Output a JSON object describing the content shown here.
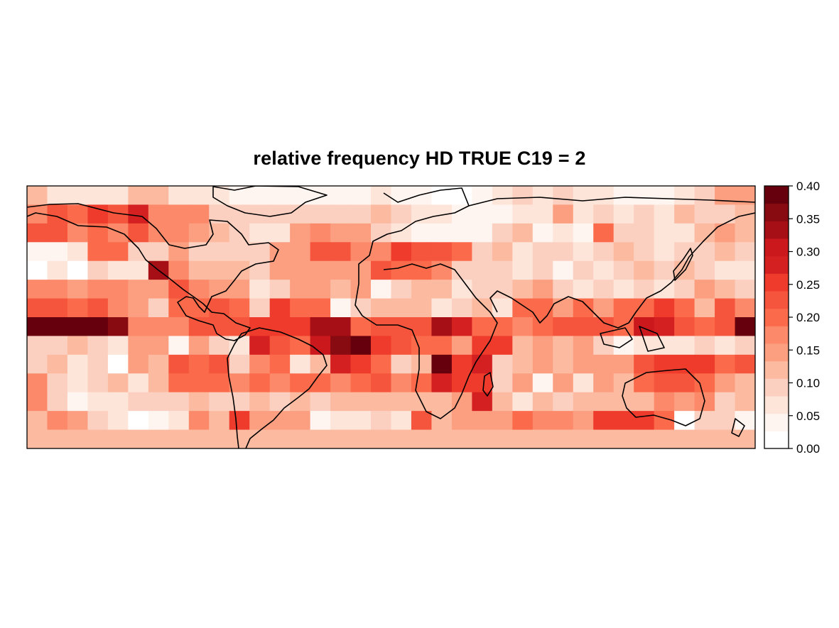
{
  "title": "relative frequency HD TRUE C19 = 2",
  "colorbar": {
    "ticks": [
      "0.00",
      "0.05",
      "0.10",
      "0.15",
      "0.20",
      "0.25",
      "0.30",
      "0.35",
      "0.40"
    ],
    "range": [
      0,
      0.4
    ],
    "colors": [
      "#FFFFFF",
      "#FFF5F0",
      "#FEE5D9",
      "#FCD0C0",
      "#FCBBA1",
      "#FC9E80",
      "#FC8A6A",
      "#FB6A4A",
      "#F5553C",
      "#EF3B2C",
      "#D42020",
      "#CB181D",
      "#A50F15",
      "#870B10",
      "#67000D"
    ]
  },
  "chart_data": {
    "type": "heatmap",
    "title": "relative frequency HD TRUE C19 = 2",
    "grid": "14 latitude bands x 36 longitude cells, 10 deg x 10 deg, from 180W to 180E and 60N to 70S",
    "value_range": [
      0,
      0.4
    ],
    "rows": [
      [
        0.12,
        0.08,
        0.08,
        0.08,
        0.08,
        0.11,
        0.12,
        0.08,
        0.08,
        0.06,
        0.05,
        0.05,
        0.05,
        0.03,
        0.03,
        0.03,
        0.03,
        0.06,
        0.05,
        0.03,
        0.0,
        0.0,
        0.05,
        0.08,
        0.1,
        0.08,
        0.1,
        0.08,
        0.06,
        0.05,
        0.05,
        0.05,
        0.06,
        0.1,
        0.16,
        0.16
      ],
      [
        0.18,
        0.22,
        0.2,
        0.25,
        0.23,
        0.27,
        0.18,
        0.18,
        0.18,
        0.1,
        0.1,
        0.1,
        0.1,
        0.1,
        0.1,
        0.1,
        0.1,
        0.12,
        0.1,
        0.08,
        0.08,
        0.05,
        0.05,
        0.05,
        0.08,
        0.06,
        0.16,
        0.06,
        0.1,
        0.08,
        0.1,
        0.06,
        0.12,
        0.1,
        0.1,
        0.12
      ],
      [
        0.22,
        0.22,
        0.18,
        0.2,
        0.18,
        0.22,
        0.18,
        0.18,
        0.15,
        0.12,
        0.1,
        0.08,
        0.08,
        0.16,
        0.18,
        0.15,
        0.15,
        0.1,
        0.06,
        0.05,
        0.05,
        0.05,
        0.05,
        0.1,
        0.12,
        0.05,
        0.06,
        0.05,
        0.2,
        0.1,
        0.1,
        0.08,
        0.06,
        0.12,
        0.15,
        0.12
      ],
      [
        0.05,
        0.05,
        0.06,
        0.2,
        0.2,
        0.1,
        0.1,
        0.15,
        0.1,
        0.1,
        0.1,
        0.1,
        0.16,
        0.16,
        0.22,
        0.22,
        0.18,
        0.18,
        0.25,
        0.22,
        0.22,
        0.2,
        0.1,
        0.12,
        0.08,
        0.1,
        0.1,
        0.06,
        0.1,
        0.12,
        0.1,
        0.08,
        0.1,
        0.1,
        0.12,
        0.1
      ],
      [
        0.0,
        0.06,
        0.0,
        0.1,
        0.08,
        0.08,
        0.33,
        0.18,
        0.12,
        0.12,
        0.12,
        0.1,
        0.15,
        0.16,
        0.15,
        0.15,
        0.15,
        0.22,
        0.2,
        0.2,
        0.18,
        0.1,
        0.1,
        0.1,
        0.08,
        0.1,
        0.05,
        0.1,
        0.06,
        0.1,
        0.12,
        0.1,
        0.12,
        0.1,
        0.06,
        0.06
      ],
      [
        0.18,
        0.18,
        0.15,
        0.18,
        0.18,
        0.15,
        0.15,
        0.22,
        0.18,
        0.15,
        0.15,
        0.06,
        0.1,
        0.15,
        0.15,
        0.12,
        0.15,
        0.05,
        0.1,
        0.12,
        0.12,
        0.08,
        0.1,
        0.1,
        0.12,
        0.15,
        0.1,
        0.08,
        0.1,
        0.08,
        0.1,
        0.08,
        0.1,
        0.15,
        0.12,
        0.1
      ],
      [
        0.22,
        0.22,
        0.2,
        0.23,
        0.18,
        0.15,
        0.1,
        0.2,
        0.2,
        0.22,
        0.2,
        0.1,
        0.25,
        0.2,
        0.2,
        0.05,
        0.1,
        0.12,
        0.12,
        0.12,
        0.08,
        0.1,
        0.12,
        0.06,
        0.2,
        0.2,
        0.15,
        0.2,
        0.15,
        0.2,
        0.2,
        0.25,
        0.2,
        0.12,
        0.22,
        0.18
      ],
      [
        0.4,
        0.4,
        0.4,
        0.4,
        0.35,
        0.18,
        0.18,
        0.18,
        0.22,
        0.22,
        0.22,
        0.25,
        0.25,
        0.25,
        0.33,
        0.33,
        0.2,
        0.22,
        0.22,
        0.22,
        0.33,
        0.28,
        0.2,
        0.2,
        0.18,
        0.2,
        0.22,
        0.22,
        0.22,
        0.2,
        0.3,
        0.28,
        0.22,
        0.2,
        0.22,
        0.4
      ],
      [
        0.1,
        0.1,
        0.12,
        0.1,
        0.06,
        0.15,
        0.15,
        0.05,
        0.15,
        0.1,
        0.08,
        0.28,
        0.22,
        0.2,
        0.3,
        0.36,
        0.4,
        0.25,
        0.22,
        0.2,
        0.2,
        0.15,
        0.25,
        0.25,
        0.12,
        0.15,
        0.12,
        0.15,
        0.1,
        0.05,
        0.08,
        0.06,
        0.06,
        0.1,
        0.08,
        0.1
      ],
      [
        0.1,
        0.12,
        0.08,
        0.1,
        0.0,
        0.15,
        0.12,
        0.22,
        0.2,
        0.22,
        0.1,
        0.18,
        0.2,
        0.08,
        0.12,
        0.28,
        0.25,
        0.2,
        0.1,
        0.12,
        0.38,
        0.25,
        0.28,
        0.1,
        0.12,
        0.15,
        0.12,
        0.15,
        0.15,
        0.15,
        0.22,
        0.25,
        0.25,
        0.25,
        0.2,
        0.22
      ],
      [
        0.18,
        0.1,
        0.06,
        0.1,
        0.12,
        0.08,
        0.12,
        0.2,
        0.2,
        0.2,
        0.18,
        0.2,
        0.18,
        0.2,
        0.2,
        0.18,
        0.2,
        0.22,
        0.18,
        0.2,
        0.27,
        0.25,
        0.25,
        0.1,
        0.15,
        0.05,
        0.15,
        0.08,
        0.15,
        0.12,
        0.2,
        0.22,
        0.22,
        0.2,
        0.15,
        0.12
      ],
      [
        0.18,
        0.1,
        0.05,
        0.06,
        0.08,
        0.1,
        0.1,
        0.1,
        0.12,
        0.1,
        0.1,
        0.12,
        0.1,
        0.12,
        0.1,
        0.12,
        0.12,
        0.12,
        0.12,
        0.12,
        0.12,
        0.15,
        0.28,
        0.12,
        0.06,
        0.12,
        0.1,
        0.12,
        0.12,
        0.12,
        0.12,
        0.18,
        0.15,
        0.18,
        0.1,
        0.12
      ],
      [
        0.12,
        0.18,
        0.15,
        0.1,
        0.08,
        0.0,
        0.05,
        0.06,
        0.18,
        0.12,
        0.25,
        0.15,
        0.15,
        0.15,
        0.03,
        0.08,
        0.08,
        0.1,
        0.08,
        0.22,
        0.12,
        0.15,
        0.15,
        0.15,
        0.2,
        0.18,
        0.18,
        0.15,
        0.25,
        0.25,
        0.25,
        0.2,
        0.0,
        0.1,
        0.1,
        0.05
      ],
      [
        0.12,
        0.12,
        0.12,
        0.12,
        0.12,
        0.12,
        0.12,
        0.12,
        0.12,
        0.12,
        0.12,
        0.12,
        0.12,
        0.12,
        0.12,
        0.12,
        0.12,
        0.12,
        0.12,
        0.12,
        0.12,
        0.12,
        0.12,
        0.12,
        0.12,
        0.12,
        0.12,
        0.12,
        0.12,
        0.12,
        0.12,
        0.12,
        0.12,
        0.12,
        0.12,
        0.12
      ]
    ]
  }
}
